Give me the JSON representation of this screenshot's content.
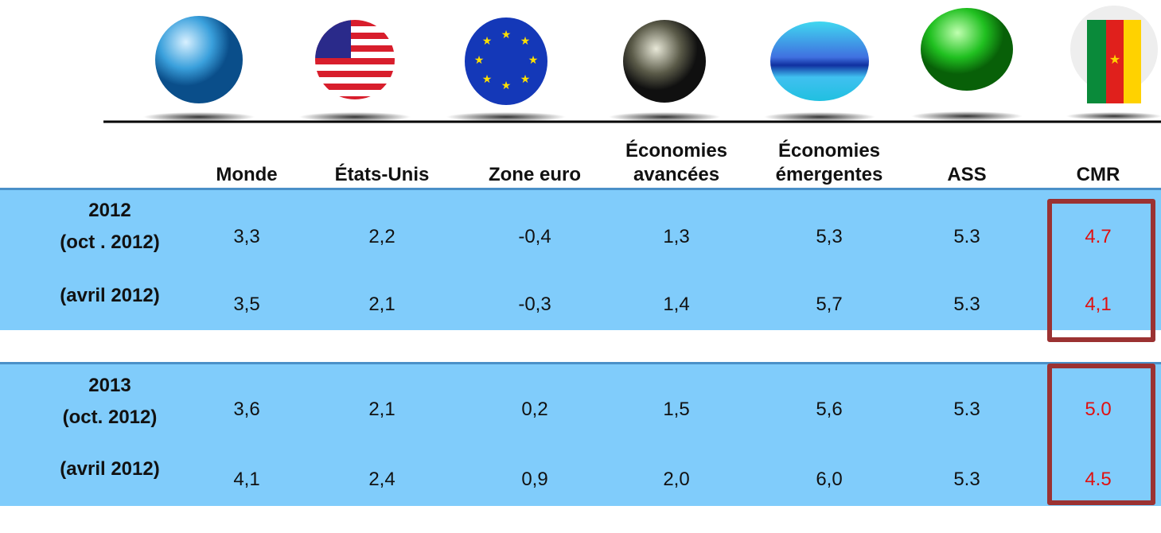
{
  "columns": [
    "Monde",
    "États-Unis",
    "Zone euro",
    "Économies avancées",
    "Économies émergentes",
    "ASS",
    "CMR"
  ],
  "groups": [
    {
      "year": "2012",
      "rows": [
        {
          "label": "(oct . 2012)",
          "values": [
            "3,3",
            "2,2",
            "-0,4",
            "1,3",
            "5,3",
            "5.3",
            "4.7"
          ]
        },
        {
          "label": "(avril 2012)",
          "values": [
            "3,5",
            "2,1",
            "-0,3",
            "1,4",
            "5,7",
            "5.3",
            "4,1"
          ]
        }
      ]
    },
    {
      "year": "2013",
      "rows": [
        {
          "label": "(oct. 2012)",
          "values": [
            "3,6",
            "2,1",
            "0,2",
            "1,5",
            "5,6",
            "5.3",
            "5.0"
          ]
        },
        {
          "label": "(avril 2012)",
          "values": [
            "4,1",
            "2,4",
            "0,9",
            "2,0",
            "6,0",
            "5.3",
            "4.5"
          ]
        }
      ]
    }
  ]
}
